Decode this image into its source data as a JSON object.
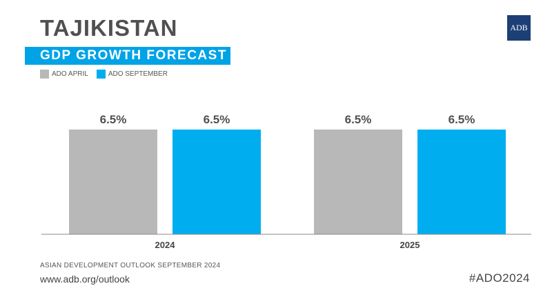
{
  "header": {
    "country": "TAJIKISTAN",
    "subtitle": "GDP GROWTH FORECAST",
    "logo_text": "ADB"
  },
  "legend": {
    "items": [
      {
        "label": "ADO APRIL",
        "color": "#b8b8b8"
      },
      {
        "label": "ADO SEPTEMBER",
        "color": "#00aeef"
      }
    ]
  },
  "chart_data": {
    "type": "bar",
    "title": "GDP GROWTH FORECAST",
    "categories": [
      "2024",
      "2025"
    ],
    "series": [
      {
        "name": "ADO APRIL",
        "color": "#b8b8b8",
        "values": [
          6.5,
          6.5
        ],
        "labels": [
          "6.5%",
          "6.5%"
        ]
      },
      {
        "name": "ADO SEPTEMBER",
        "color": "#00aeef",
        "values": [
          6.5,
          6.5
        ],
        "labels": [
          "6.5%",
          "6.5%"
        ]
      }
    ],
    "xlabel": "",
    "ylabel": "",
    "ylim": [
      0,
      6.5
    ],
    "grid": false,
    "legend_position": "top-left"
  },
  "footer": {
    "source": "ASIAN DEVELOPMENT OUTLOOK SEPTEMBER 2024",
    "url": "www.adb.org/outlook",
    "hashtag": "#ADO2024"
  }
}
